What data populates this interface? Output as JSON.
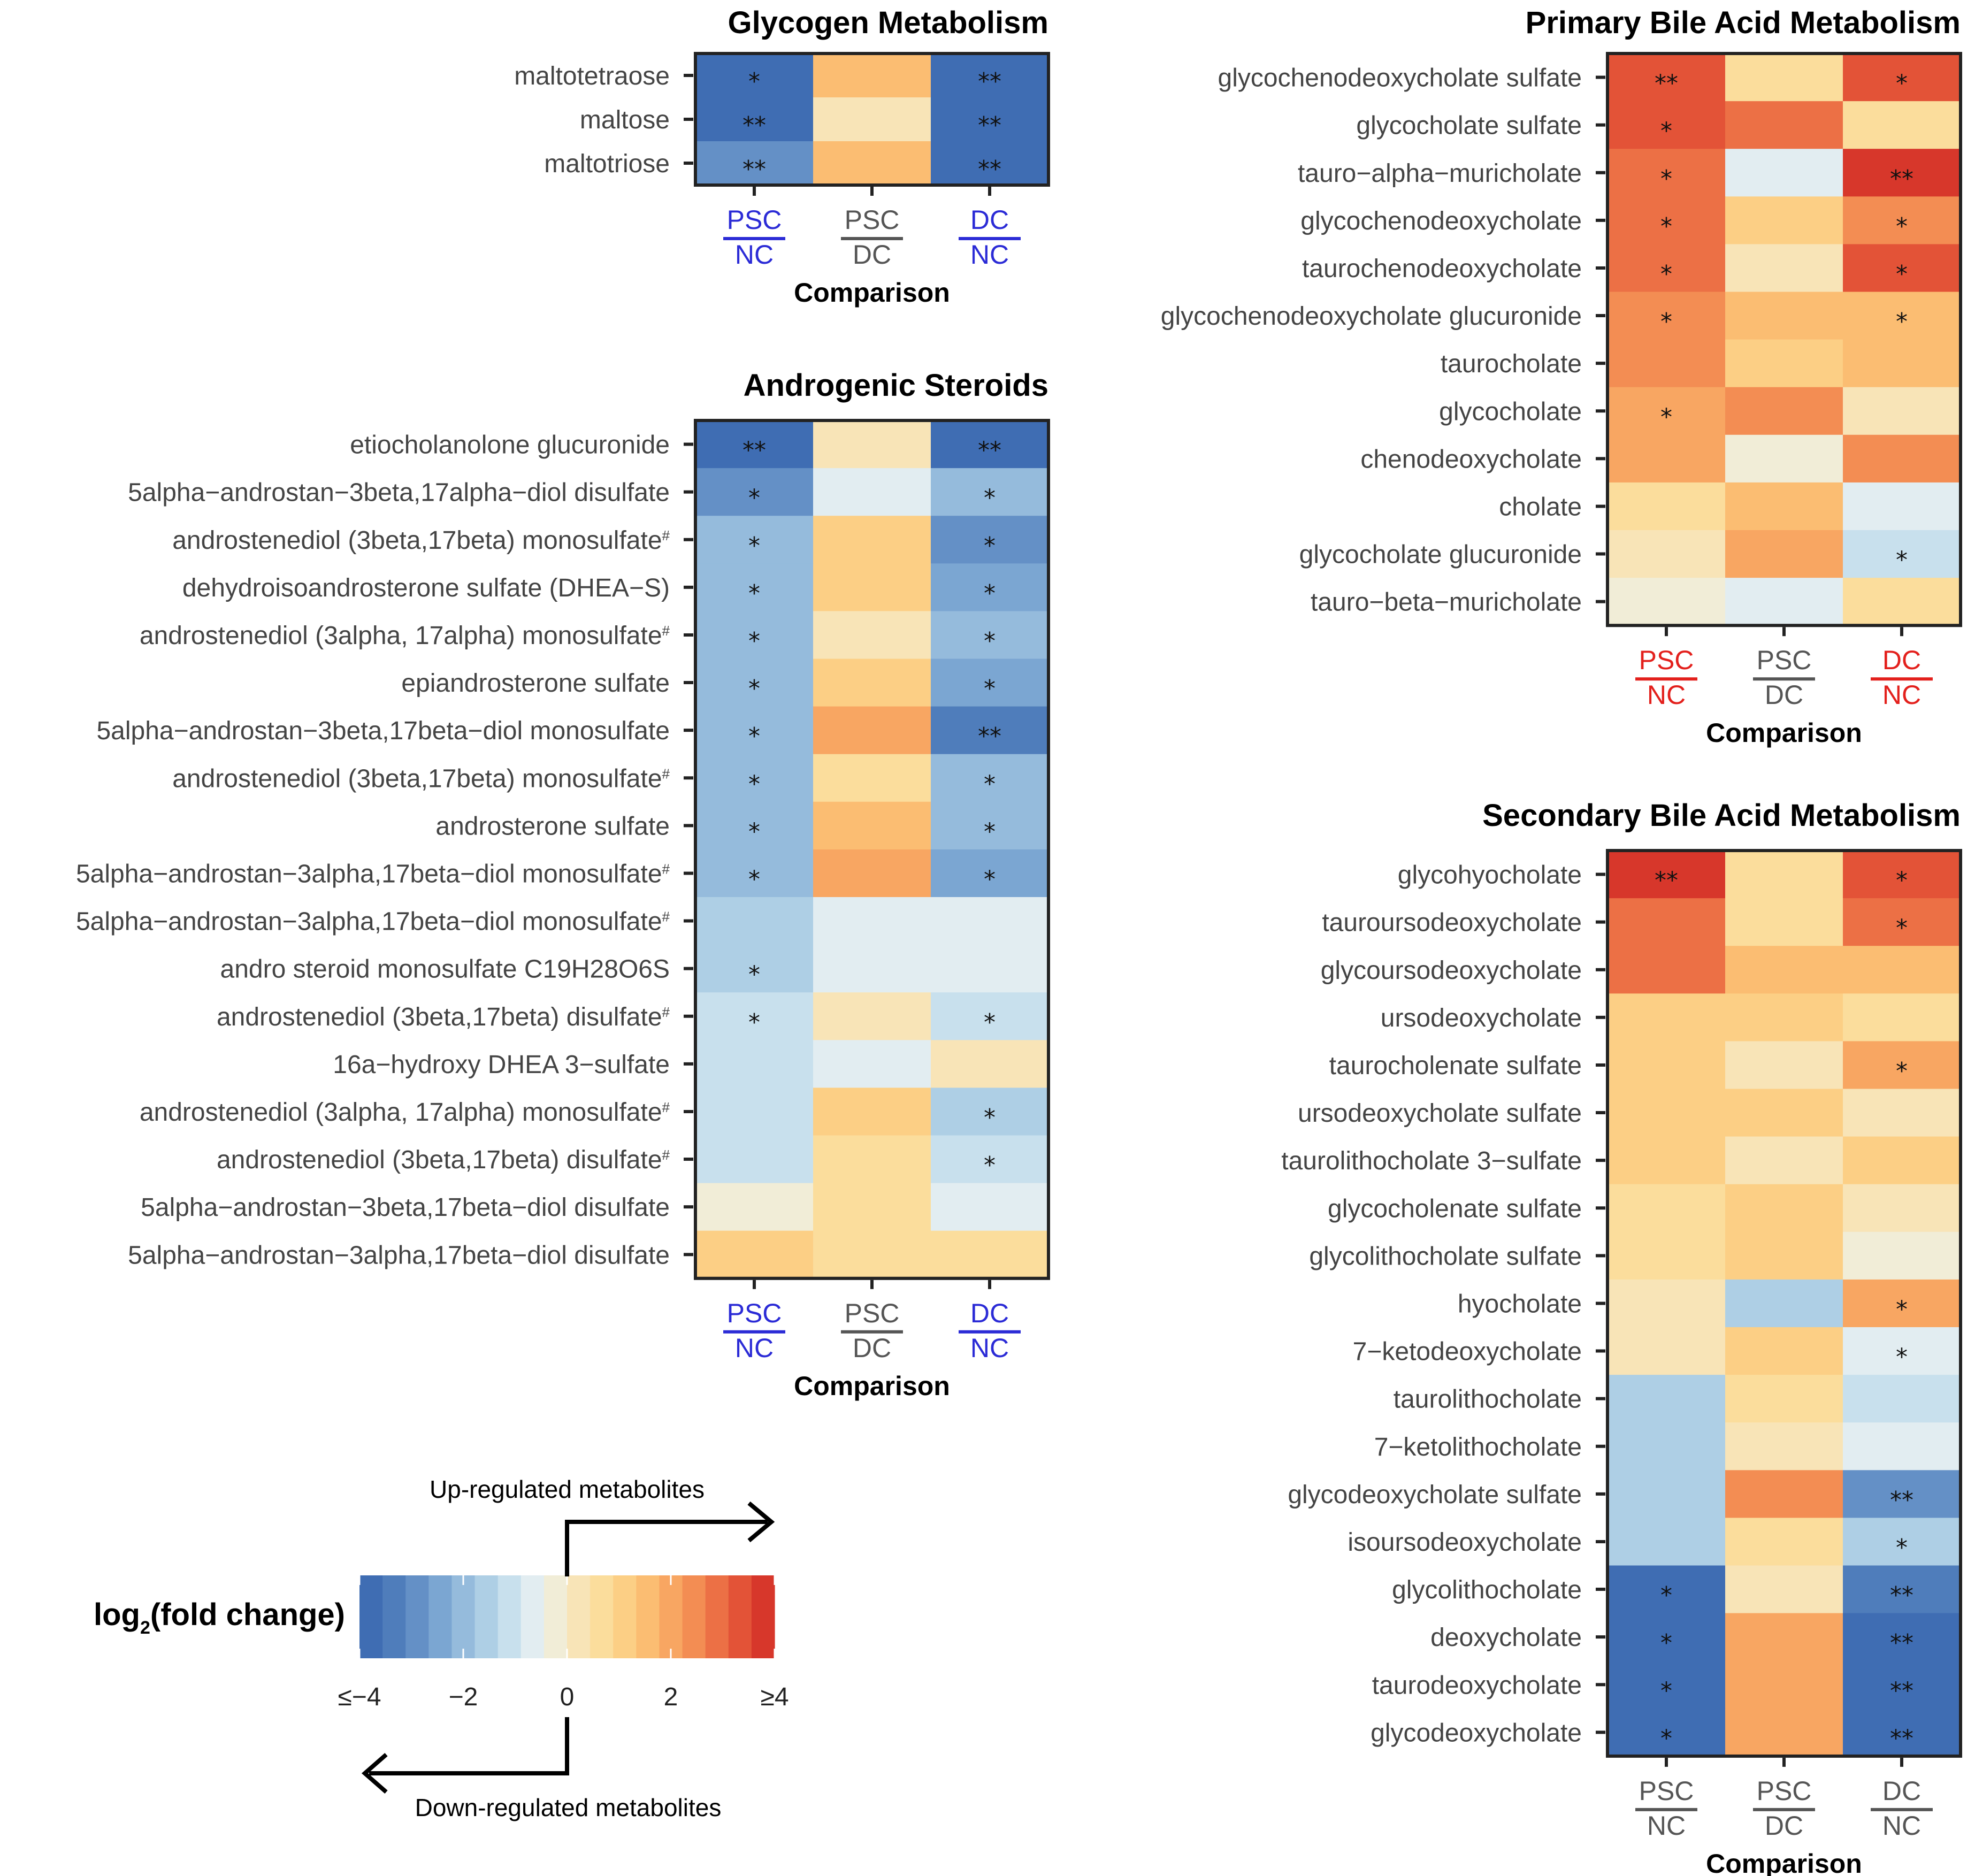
{
  "colors": {
    "scale": [
      "#3f6db3",
      "#4f7dbb",
      "#6490c6",
      "#7ba6d2",
      "#95bbdc",
      "#aecfe5",
      "#c8e0ed",
      "#e2edf1",
      "#f1edd7",
      "#f8e4b7",
      "#fbdd9c",
      "#fccf85",
      "#fbbd72",
      "#f8a662",
      "#f38d53",
      "#ec7045",
      "#e35337",
      "#d7372b"
    ],
    "blue_label": "#2b2bd6",
    "red_label": "#e3201c",
    "gray_label": "#555555"
  },
  "legend": {
    "title_main": "log",
    "title_sub": "2",
    "title_rest": "(fold change)",
    "ticks": [
      "≤−4",
      "−2",
      "0",
      "2",
      "≥4"
    ],
    "up_label": "Up-regulated metabolites",
    "down_label": "Down-regulated metabolites"
  },
  "chart_data": [
    {
      "type": "heatmap",
      "title": "Glycogen Metabolism",
      "xlabel": "Comparison",
      "value_range": [
        -4,
        4
      ],
      "columns": [
        {
          "top": "PSC",
          "bottom": "NC",
          "color": "blue"
        },
        {
          "top": "PSC",
          "bottom": "DC",
          "color": "gray"
        },
        {
          "top": "DC",
          "bottom": "NC",
          "color": "blue"
        }
      ],
      "rows": [
        {
          "name": "maltotetraose",
          "values": [
            -4.0,
            1.4,
            -4.0
          ],
          "stars": [
            "*",
            "",
            "**"
          ]
        },
        {
          "name": "maltose",
          "values": [
            -4.0,
            0.3,
            -4.0
          ],
          "stars": [
            "**",
            "",
            "**"
          ]
        },
        {
          "name": "maltotriose",
          "values": [
            -3.0,
            1.4,
            -4.0
          ],
          "stars": [
            "**",
            "",
            "**"
          ]
        }
      ]
    },
    {
      "type": "heatmap",
      "title": "Androgenic Steroids",
      "xlabel": "Comparison",
      "value_range": [
        -4,
        4
      ],
      "columns": [
        {
          "top": "PSC",
          "bottom": "NC",
          "color": "blue"
        },
        {
          "top": "PSC",
          "bottom": "DC",
          "color": "gray"
        },
        {
          "top": "DC",
          "bottom": "NC",
          "color": "blue"
        }
      ],
      "rows": [
        {
          "name": "etiocholanolone glucuronide",
          "values": [
            -4.0,
            0.3,
            -4.0
          ],
          "stars": [
            "**",
            "",
            "**"
          ],
          "mark": ""
        },
        {
          "name": "5alpha−androstan−3beta,17alpha−diol disulfate",
          "values": [
            -3.0,
            -0.7,
            -2.0
          ],
          "stars": [
            "*",
            "",
            "*"
          ],
          "mark": ""
        },
        {
          "name": "androstenediol (3beta,17beta) monosulfate",
          "values": [
            -2.0,
            1.3,
            -3.0
          ],
          "stars": [
            "*",
            "",
            "*"
          ],
          "mark": "#"
        },
        {
          "name": "dehydroisoandrosterone sulfate (DHEA−S)",
          "values": [
            -2.0,
            1.0,
            -2.5
          ],
          "stars": [
            "*",
            "",
            "*"
          ],
          "mark": ""
        },
        {
          "name": "androstenediol (3alpha, 17alpha) monosulfate",
          "values": [
            -2.0,
            0.2,
            -1.8
          ],
          "stars": [
            "*",
            "",
            "*"
          ],
          "mark": "#"
        },
        {
          "name": "epiandrosterone sulfate",
          "values": [
            -2.0,
            1.0,
            -2.5
          ],
          "stars": [
            "*",
            "",
            "*"
          ],
          "mark": ""
        },
        {
          "name": "5alpha−androstan−3beta,17beta−diol monosulfate",
          "values": [
            -2.0,
            1.8,
            -3.5
          ],
          "stars": [
            "*",
            "",
            "**"
          ],
          "mark": ""
        },
        {
          "name": "androstenediol (3beta,17beta) monosulfate",
          "values": [
            -2.0,
            0.5,
            -1.8
          ],
          "stars": [
            "*",
            "",
            "*"
          ],
          "mark": "#"
        },
        {
          "name": "androsterone sulfate",
          "values": [
            -1.8,
            1.4,
            -2.2
          ],
          "stars": [
            "*",
            "",
            "*"
          ],
          "mark": ""
        },
        {
          "name": "5alpha−androstan−3alpha,17beta−diol monosulfate",
          "values": [
            -1.8,
            1.9,
            -2.5
          ],
          "stars": [
            "*",
            "",
            "*"
          ],
          "mark": "#"
        },
        {
          "name": "5alpha−androstan−3alpha,17beta−diol monosulfate",
          "values": [
            -1.5,
            -0.8,
            -0.8
          ],
          "stars": [
            "",
            "",
            ""
          ],
          "mark": "#"
        },
        {
          "name": "andro steroid monosulfate C19H28O6S",
          "values": [
            -1.5,
            -0.5,
            -0.8
          ],
          "stars": [
            "*",
            "",
            ""
          ],
          "mark": ""
        },
        {
          "name": "androstenediol (3beta,17beta) disulfate",
          "values": [
            -1.3,
            0.2,
            -1.1
          ],
          "stars": [
            "*",
            "",
            "*"
          ],
          "mark": "#"
        },
        {
          "name": "16a−hydroxy DHEA 3−sulfate",
          "values": [
            -1.0,
            -0.8,
            0.2
          ],
          "stars": [
            "",
            "",
            ""
          ],
          "mark": ""
        },
        {
          "name": "androstenediol (3alpha, 17alpha) monosulfate",
          "values": [
            -1.0,
            1.3,
            -1.5
          ],
          "stars": [
            "",
            "",
            "*"
          ],
          "mark": "#"
        },
        {
          "name": "androstenediol (3beta,17beta) disulfate",
          "values": [
            -0.9,
            0.8,
            -1.1
          ],
          "stars": [
            "",
            "",
            "*"
          ],
          "mark": "#"
        },
        {
          "name": "5alpha−androstan−3beta,17beta−diol disulfate",
          "values": [
            -0.3,
            0.6,
            -0.6
          ],
          "stars": [
            "",
            "",
            ""
          ],
          "mark": ""
        },
        {
          "name": "5alpha−androstan−3alpha,17beta−diol disulfate",
          "values": [
            0.9,
            0.6,
            0.7
          ],
          "stars": [
            "",
            "",
            ""
          ],
          "mark": ""
        }
      ]
    },
    {
      "type": "heatmap",
      "title": "Primary Bile Acid Metabolism",
      "xlabel": "Comparison",
      "value_range": [
        -4,
        4
      ],
      "columns": [
        {
          "top": "PSC",
          "bottom": "NC",
          "color": "red"
        },
        {
          "top": "PSC",
          "bottom": "DC",
          "color": "gray"
        },
        {
          "top": "DC",
          "bottom": "NC",
          "color": "red"
        }
      ],
      "rows": [
        {
          "name": "glycochenodeoxycholate sulfate",
          "values": [
            3.3,
            0.6,
            3.3
          ],
          "stars": [
            "**",
            "",
            "*"
          ]
        },
        {
          "name": "glycocholate sulfate",
          "values": [
            3.3,
            3.1,
            0.6
          ],
          "stars": [
            "*",
            "",
            ""
          ]
        },
        {
          "name": "tauro−alpha−muricholate",
          "values": [
            3.1,
            -0.8,
            4.0
          ],
          "stars": [
            "*",
            "",
            "**"
          ]
        },
        {
          "name": "glycochenodeoxycholate",
          "values": [
            2.8,
            1.0,
            2.6
          ],
          "stars": [
            "*",
            "",
            "*"
          ]
        },
        {
          "name": "taurochenodeoxycholate",
          "values": [
            2.8,
            0.2,
            3.2
          ],
          "stars": [
            "*",
            "",
            "*"
          ]
        },
        {
          "name": "glycochenodeoxycholate glucuronide",
          "values": [
            2.6,
            1.5,
            1.6
          ],
          "stars": [
            "*",
            "",
            "*"
          ]
        },
        {
          "name": "taurocholate",
          "values": [
            2.4,
            1.2,
            1.6
          ],
          "stars": [
            "",
            "",
            ""
          ]
        },
        {
          "name": "glycocholate",
          "values": [
            2.2,
            2.4,
            0.4
          ],
          "stars": [
            "*",
            "",
            ""
          ]
        },
        {
          "name": "chenodeoxycholate",
          "values": [
            1.8,
            -0.3,
            2.4
          ],
          "stars": [
            "",
            "",
            ""
          ]
        },
        {
          "name": "cholate",
          "values": [
            0.7,
            1.6,
            -0.7
          ],
          "stars": [
            "",
            "",
            ""
          ]
        },
        {
          "name": "glycocholate glucuronide",
          "values": [
            0.3,
            2.0,
            -1.3
          ],
          "stars": [
            "",
            "",
            "*"
          ]
        },
        {
          "name": "tauro−beta−muricholate",
          "values": [
            -0.4,
            -0.7,
            0.8
          ],
          "stars": [
            "",
            "",
            ""
          ]
        }
      ]
    },
    {
      "type": "heatmap",
      "title": "Secondary Bile Acid Metabolism",
      "xlabel": "Comparison",
      "value_range": [
        -4,
        4
      ],
      "columns": [
        {
          "top": "PSC",
          "bottom": "NC",
          "color": "gray"
        },
        {
          "top": "PSC",
          "bottom": "DC",
          "color": "gray"
        },
        {
          "top": "DC",
          "bottom": "NC",
          "color": "gray"
        }
      ],
      "rows": [
        {
          "name": "glycohyocholate",
          "values": [
            3.6,
            0.7,
            3.3
          ],
          "stars": [
            "**",
            "",
            "*"
          ]
        },
        {
          "name": "tauroursodeoxycholate",
          "values": [
            2.7,
            0.5,
            2.7
          ],
          "stars": [
            "",
            "",
            "*"
          ]
        },
        {
          "name": "glycoursodeoxycholate",
          "values": [
            2.7,
            1.5,
            1.6
          ],
          "stars": [
            "",
            "",
            ""
          ]
        },
        {
          "name": "ursodeoxycholate",
          "values": [
            1.3,
            1.3,
            0.7
          ],
          "stars": [
            "",
            "",
            ""
          ]
        },
        {
          "name": "taurocholenate sulfate",
          "values": [
            1.3,
            0.3,
            1.8
          ],
          "stars": [
            "",
            "",
            "*"
          ]
        },
        {
          "name": "ursodeoxycholate sulfate",
          "values": [
            1.3,
            1.3,
            0.4
          ],
          "stars": [
            "",
            "",
            ""
          ]
        },
        {
          "name": "taurolithocholate 3−sulfate",
          "values": [
            0.9,
            0.1,
            1.3
          ],
          "stars": [
            "",
            "",
            ""
          ]
        },
        {
          "name": "glycocholenate sulfate",
          "values": [
            0.8,
            1.2,
            0.1
          ],
          "stars": [
            "",
            "",
            ""
          ]
        },
        {
          "name": "glycolithocholate sulfate",
          "values": [
            0.5,
            1.2,
            -0.2
          ],
          "stars": [
            "",
            "",
            ""
          ]
        },
        {
          "name": "hyocholate",
          "values": [
            0.2,
            -1.4,
            1.9
          ],
          "stars": [
            "",
            "",
            "*"
          ]
        },
        {
          "name": "7−ketodeoxycholate",
          "values": [
            0.2,
            1.3,
            -0.7
          ],
          "stars": [
            "",
            "",
            "*"
          ]
        },
        {
          "name": "taurolithocholate",
          "values": [
            -1.4,
            0.6,
            -1.2
          ],
          "stars": [
            "",
            "",
            ""
          ]
        },
        {
          "name": "7−ketolithocholate",
          "values": [
            -1.4,
            0.1,
            -0.8
          ],
          "stars": [
            "",
            "",
            ""
          ]
        },
        {
          "name": "glycodeoxycholate sulfate",
          "values": [
            -1.4,
            2.4,
            -3.0
          ],
          "stars": [
            "",
            "",
            "**"
          ]
        },
        {
          "name": "isoursodeoxycholate",
          "values": [
            -1.5,
            0.8,
            -1.7
          ],
          "stars": [
            "",
            "",
            "*"
          ]
        },
        {
          "name": "glycolithocholate",
          "values": [
            -4.0,
            0.3,
            -3.3
          ],
          "stars": [
            "*",
            "",
            "**"
          ]
        },
        {
          "name": "deoxycholate",
          "values": [
            -4.0,
            1.9,
            -4.0
          ],
          "stars": [
            "*",
            "",
            "**"
          ]
        },
        {
          "name": "taurodeoxycholate",
          "values": [
            -4.0,
            1.9,
            -4.0
          ],
          "stars": [
            "*",
            "",
            "**"
          ]
        },
        {
          "name": "glycodeoxycholate",
          "values": [
            -4.0,
            1.9,
            -4.0
          ],
          "stars": [
            "*",
            "",
            "**"
          ]
        }
      ]
    }
  ]
}
